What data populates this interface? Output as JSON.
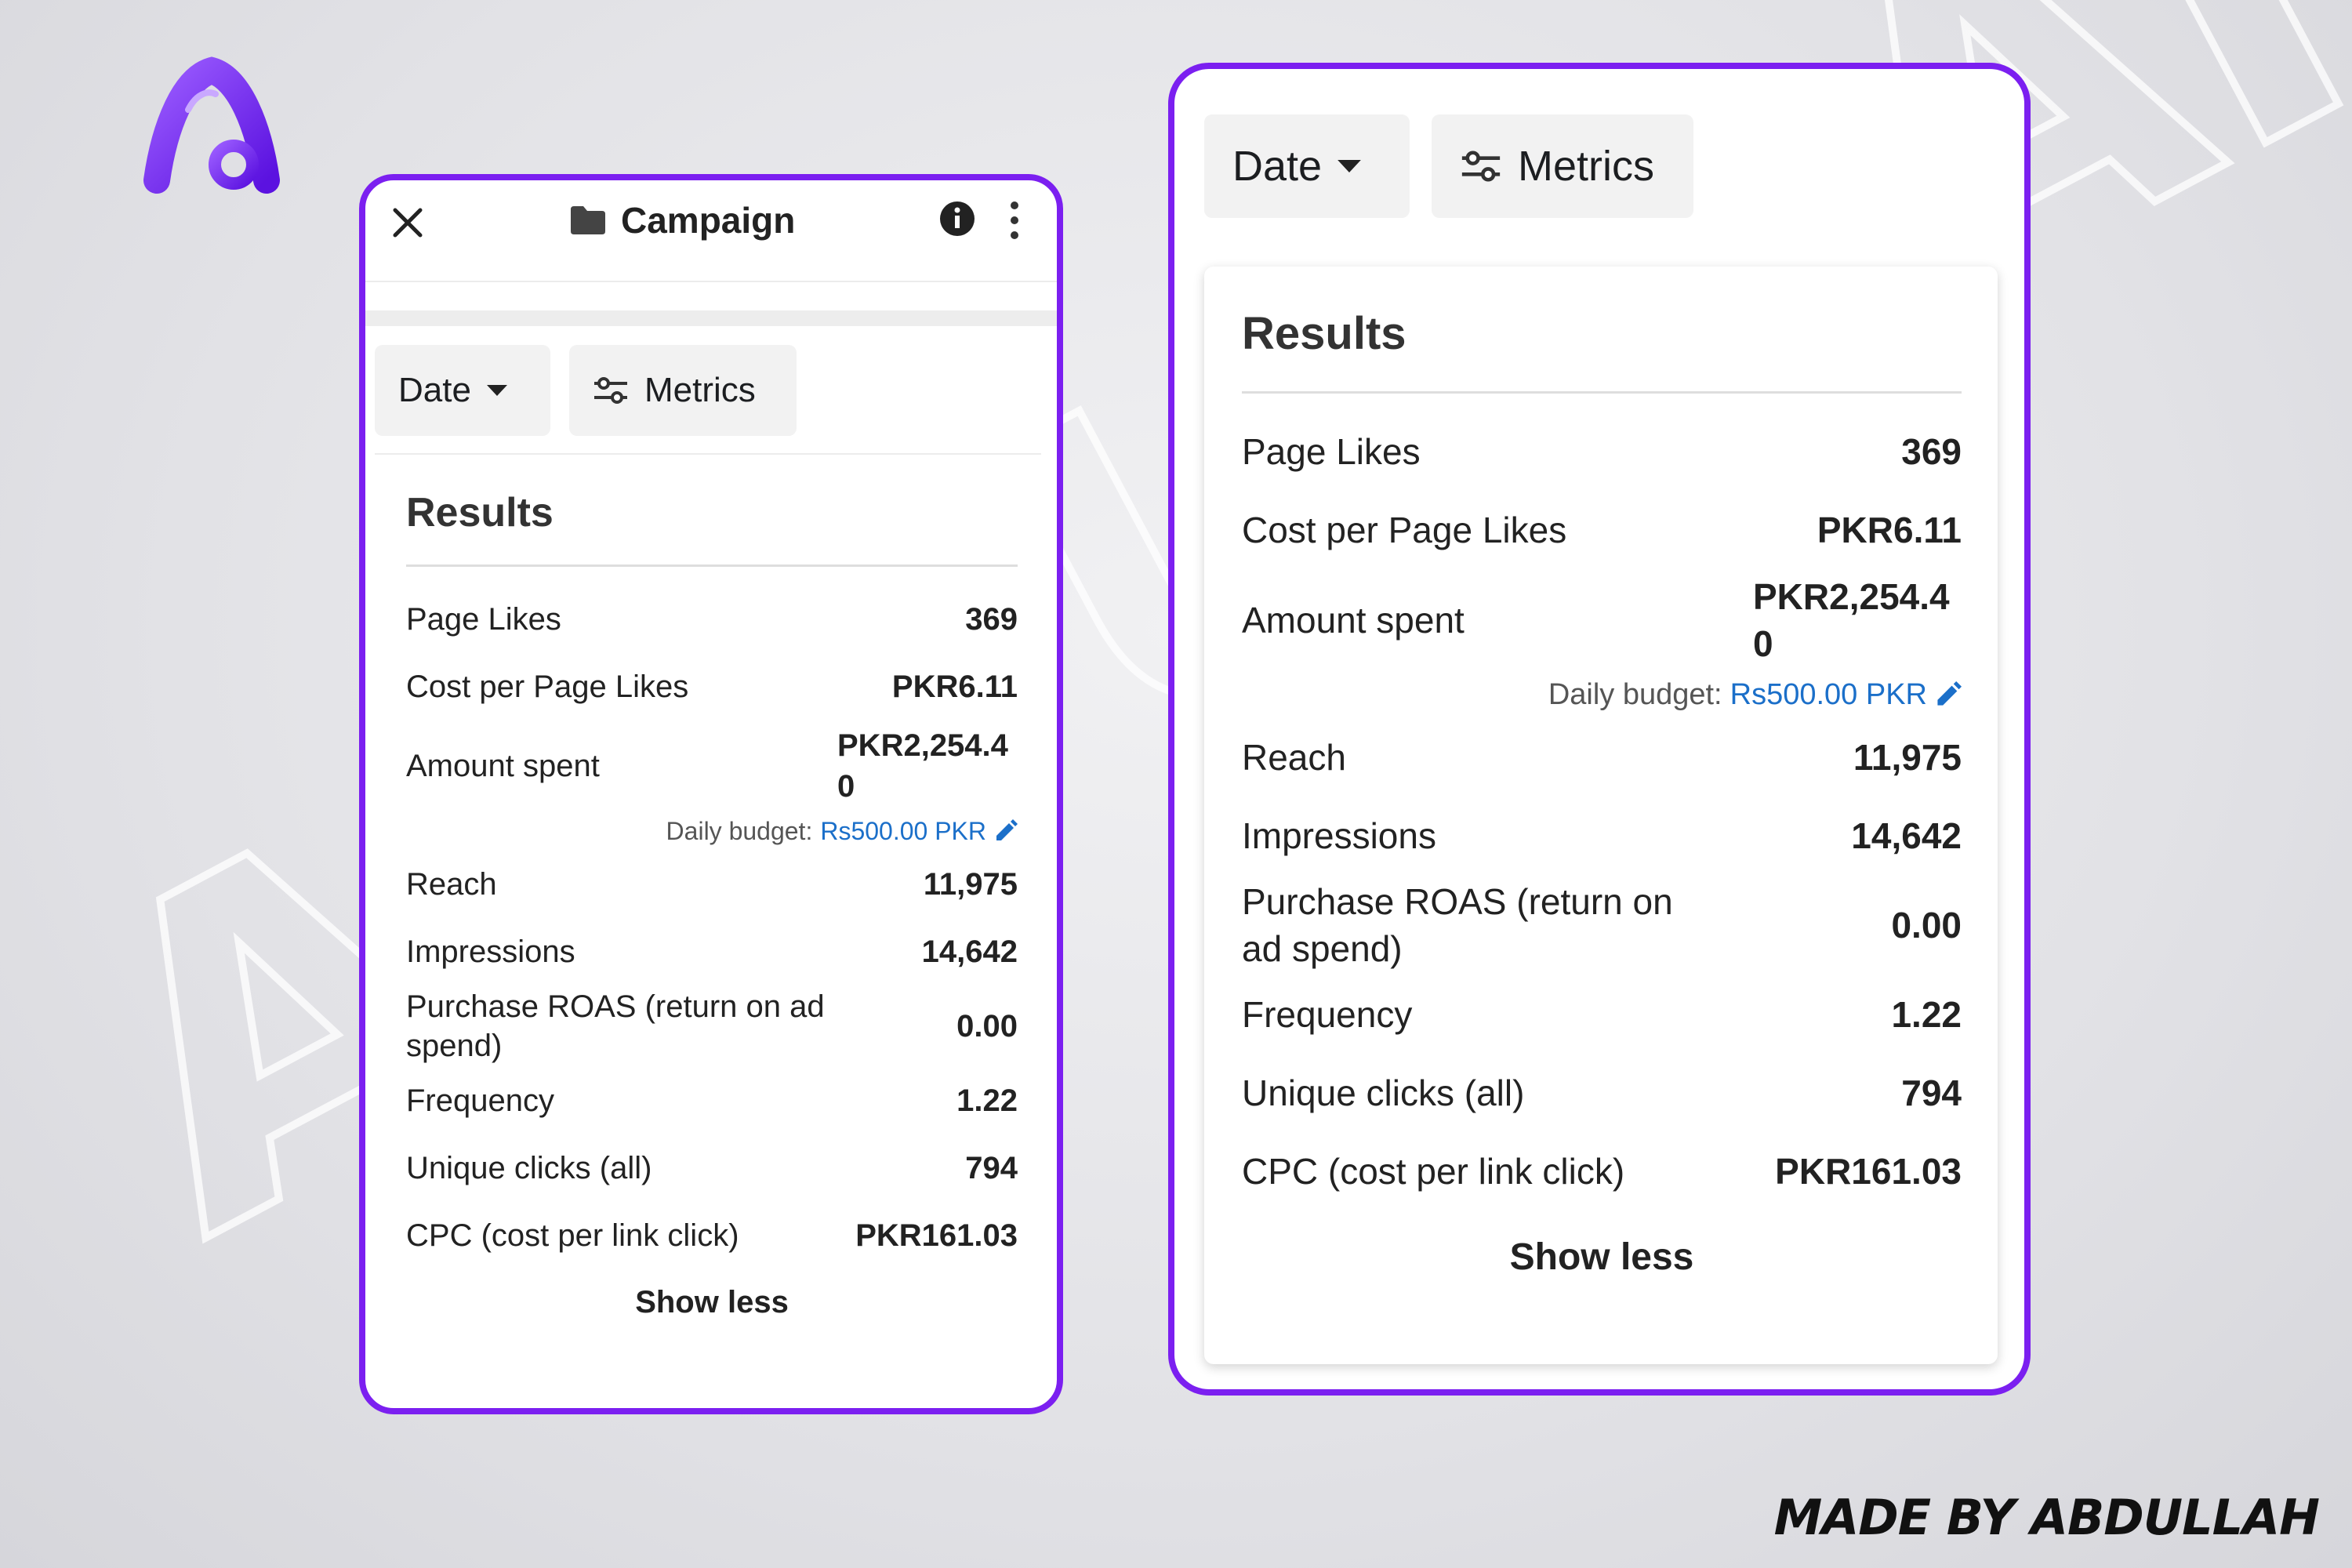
{
  "branding": {
    "credit": "MADE BY ABDULLAH",
    "watermark": "ABDULLAH",
    "logo_letter": "A",
    "accent": "#7b1ff0"
  },
  "header": {
    "title": "Campaign",
    "close_icon": "close-icon",
    "info_icon": "info-icon",
    "more_icon": "more-vert-icon"
  },
  "toolbar": {
    "date_label": "Date",
    "metrics_label": "Metrics"
  },
  "results": {
    "title": "Results",
    "rows": [
      {
        "label": "Page Likes",
        "value": "369"
      },
      {
        "label": "Cost per Page Likes",
        "value": "PKR6.11"
      },
      {
        "label": "Amount spent",
        "value": "PKR2,254.40"
      },
      {
        "label": "Reach",
        "value": "11,975"
      },
      {
        "label": "Impressions",
        "value": "14,642"
      },
      {
        "label": "Purchase ROAS (return on ad spend)",
        "value": "0.00"
      },
      {
        "label": "Frequency",
        "value": "1.22"
      },
      {
        "label": "Unique clicks (all)",
        "value": "794"
      },
      {
        "label": "CPC (cost per link click)",
        "value": "PKR161.03"
      }
    ],
    "budget_label": "Daily budget:",
    "budget_value": "Rs500.00 PKR",
    "show_less": "Show less"
  }
}
